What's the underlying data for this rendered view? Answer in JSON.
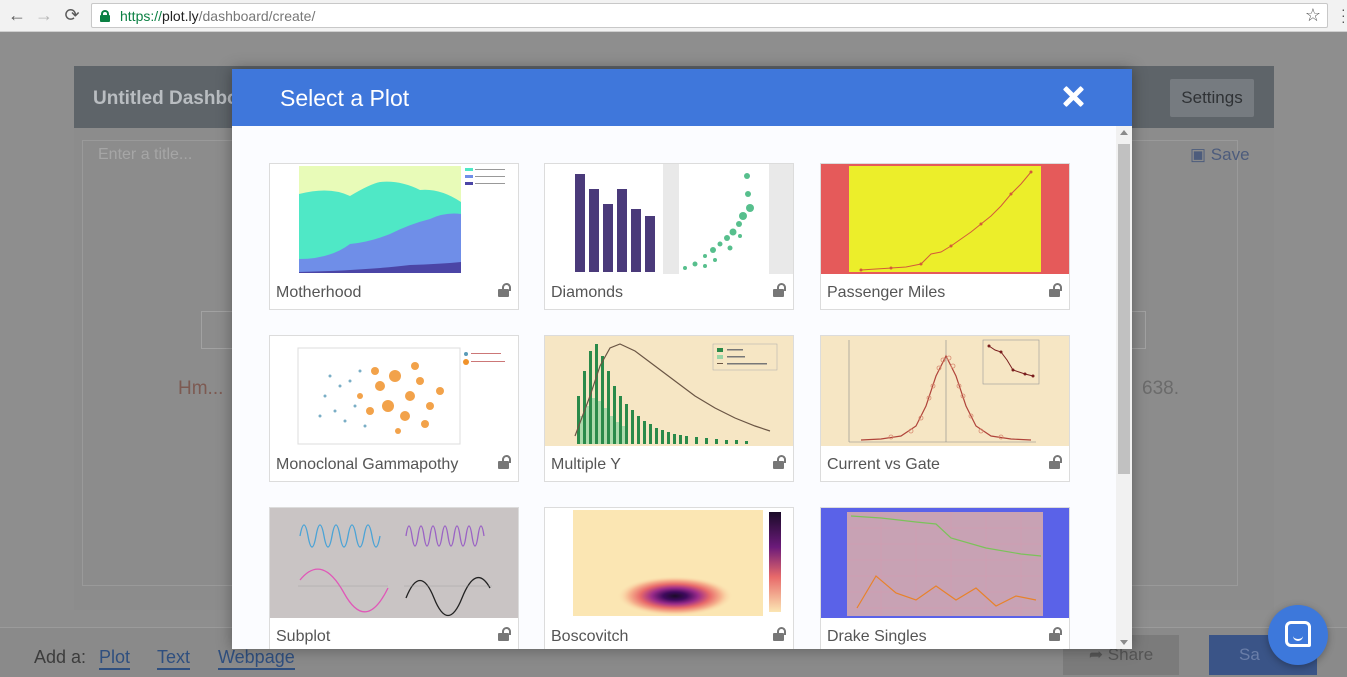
{
  "browser": {
    "url_proto": "https://",
    "url_host": "plot.ly",
    "url_path": "/dashboard/create/",
    "back_icon": "←",
    "forward_icon": "→",
    "reload_icon": "⟳",
    "star_icon": "☆"
  },
  "dashboard": {
    "title": "Untitled Dashbo",
    "settings_label": "Settings",
    "title_placeholder": "Enter a title...",
    "save_label": "Save",
    "hm_text": "Hm...",
    "number_text": "638.",
    "add_as_label": "Add a:",
    "add_links": [
      "Plot",
      "Text",
      "Webpage"
    ],
    "share_label": "Share",
    "save_button_label": "Sa"
  },
  "modal": {
    "title": "Select a Plot",
    "plots": [
      {
        "name": "Motherhood"
      },
      {
        "name": "Diamonds"
      },
      {
        "name": "Passenger Miles"
      },
      {
        "name": "Monoclonal Gammapothy"
      },
      {
        "name": "Multiple Y"
      },
      {
        "name": "Current vs Gate"
      },
      {
        "name": "Subplot"
      },
      {
        "name": "Boscovitch"
      },
      {
        "name": "Drake Singles"
      }
    ]
  },
  "colors": {
    "accent": "#3f77db",
    "header_bg": "#5e6469",
    "text_muted": "#555555"
  }
}
